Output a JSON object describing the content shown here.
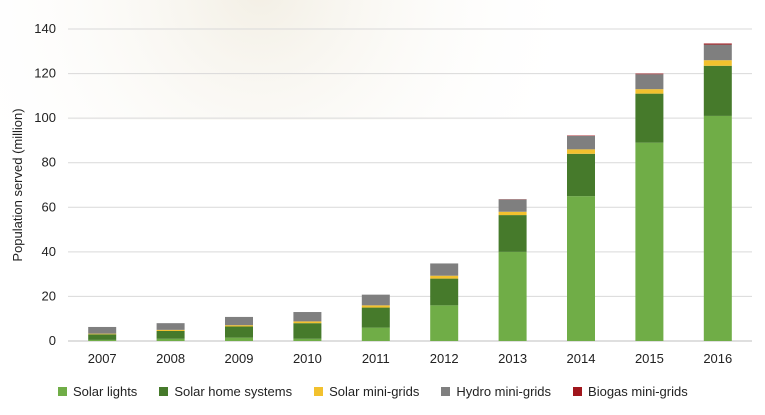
{
  "chart_data": {
    "type": "bar",
    "stacked": true,
    "title": "",
    "xlabel": "",
    "ylabel": "Population served (million)",
    "ylim": [
      0,
      140
    ],
    "yticks": [
      0,
      20,
      40,
      60,
      80,
      100,
      120,
      140
    ],
    "grid": true,
    "legend_position": "bottom",
    "categories": [
      "2007",
      "2008",
      "2009",
      "2010",
      "2011",
      "2012",
      "2013",
      "2014",
      "2015",
      "2016"
    ],
    "series": [
      {
        "name": "Solar lights",
        "color": "#70ad47",
        "values": [
          0.5,
          1,
          1.5,
          1,
          6,
          16,
          40,
          65,
          89,
          101
        ]
      },
      {
        "name": "Solar home systems",
        "color": "#467a2b",
        "values": [
          2.5,
          3.5,
          5,
          7,
          9,
          12,
          16.5,
          19,
          22,
          22.5
        ]
      },
      {
        "name": "Solar mini-grids",
        "color": "#f2c12e",
        "values": [
          0.3,
          0.5,
          0.6,
          0.8,
          1,
          1.3,
          1.5,
          2,
          2,
          2.5
        ]
      },
      {
        "name": "Hydro mini-grids",
        "color": "#7f7f7f",
        "values": [
          3,
          3,
          3.7,
          4.2,
          4.8,
          5.5,
          5.5,
          6,
          6.7,
          7
        ]
      },
      {
        "name": "Biogas mini-grids",
        "color": "#a0161c",
        "values": [
          0,
          0,
          0,
          0,
          0,
          0,
          0.1,
          0.2,
          0.3,
          0.5
        ]
      }
    ]
  }
}
